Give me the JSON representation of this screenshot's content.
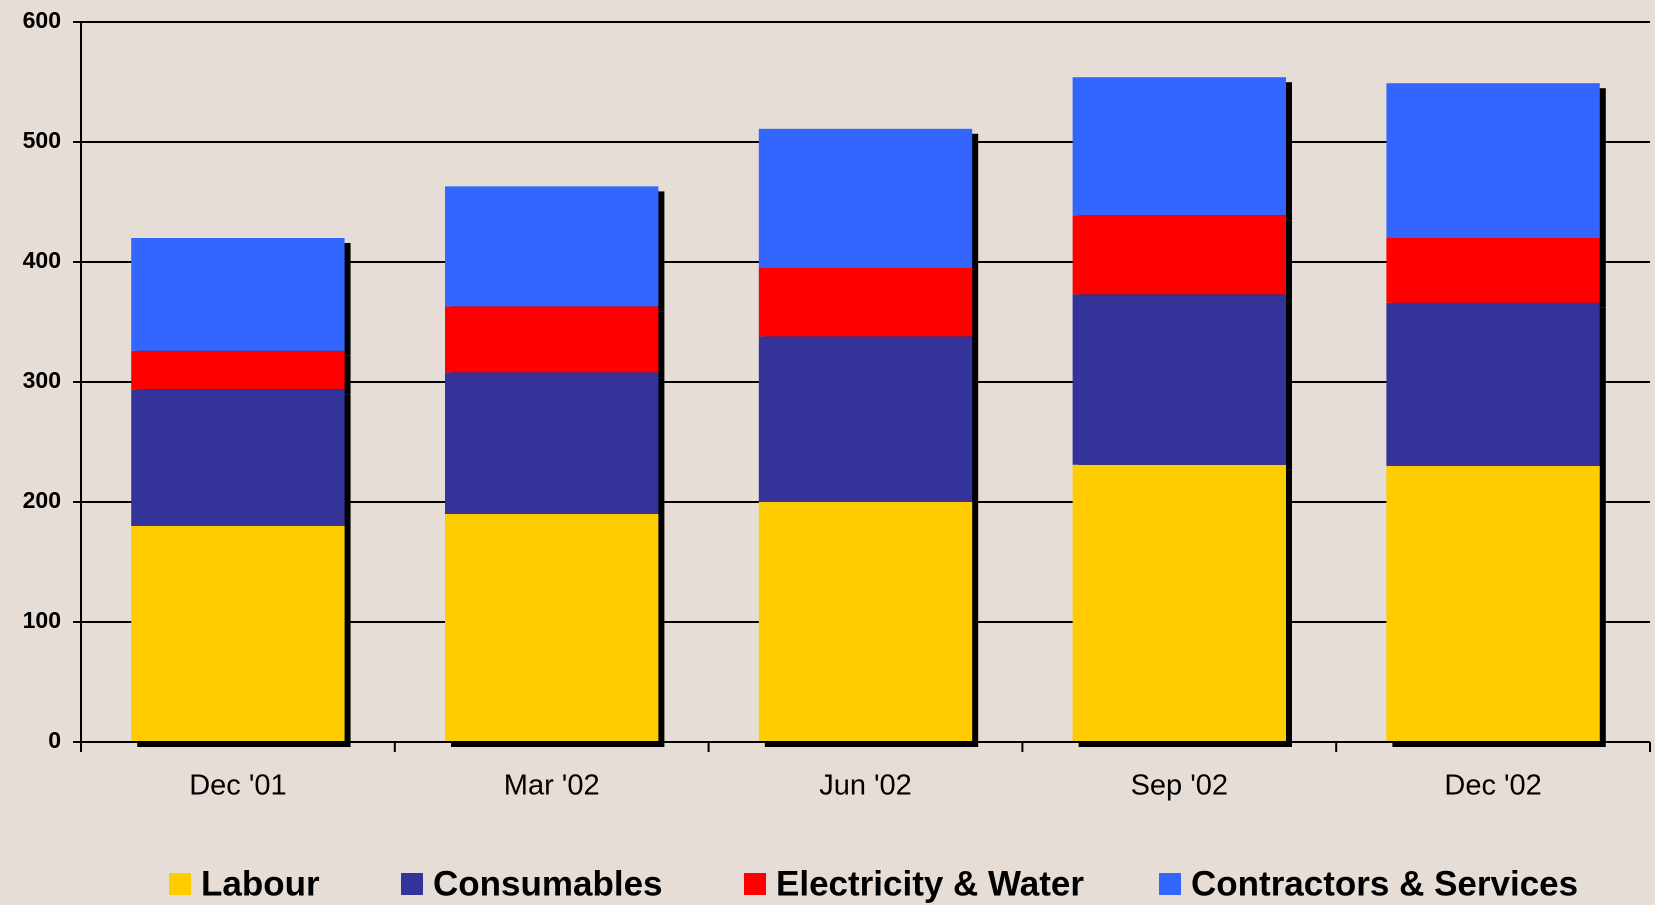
{
  "chart_data": {
    "type": "stacked-bar",
    "categories": [
      "Dec '01",
      "Mar '02",
      "Jun '02",
      "Sep '02",
      "Dec '02"
    ],
    "series": [
      {
        "name": "Labour",
        "color": "#ffcc00",
        "values": [
          180,
          190,
          200,
          231,
          230
        ]
      },
      {
        "name": "Consumables",
        "color": "#333399",
        "values": [
          114,
          118,
          138,
          142,
          136
        ]
      },
      {
        "name": "Electricity & Water",
        "color": "#ff0000",
        "values": [
          32,
          55,
          57,
          66,
          54
        ]
      },
      {
        "name": "Contractors & Services",
        "color": "#3366ff",
        "values": [
          94,
          100,
          116,
          115,
          129
        ]
      }
    ],
    "ylim": [
      0,
      600
    ],
    "yticks": [
      0,
      100,
      200,
      300,
      400,
      500,
      600
    ],
    "grid": true,
    "legend": "bottom"
  }
}
